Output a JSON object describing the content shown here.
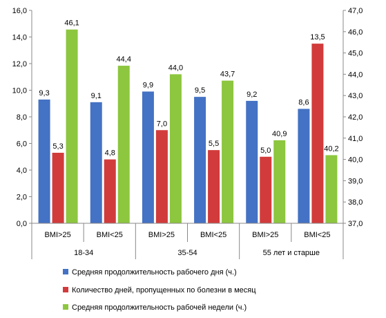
{
  "chart_data": {
    "type": "bar",
    "groups": [
      {
        "label": "18-34",
        "subcategories": [
          "BMI>25",
          "BMI<25"
        ]
      },
      {
        "label": "35-54",
        "subcategories": [
          "BMI>25",
          "BMI<25"
        ]
      },
      {
        "label": "55 лет и старше",
        "subcategories": [
          "BMI>25",
          "BMI<25"
        ]
      }
    ],
    "categories": [
      "BMI>25",
      "BMI<25",
      "BMI>25",
      "BMI<25",
      "BMI>25",
      "BMI<25"
    ],
    "series": [
      {
        "name": "Средняя продолжительность рабочего дня (ч.)",
        "axis": "left",
        "color": "#4472C4",
        "values": [
          9.3,
          9.1,
          9.9,
          9.5,
          9.2,
          8.6
        ],
        "labels": [
          "9,3",
          "9,1",
          "9,9",
          "9,5",
          "9,2",
          "8,6"
        ]
      },
      {
        "name": "Количество дней, пропущенных по болезни в месяц",
        "axis": "left",
        "color": "#D23B3B",
        "values": [
          5.3,
          4.8,
          7.0,
          5.5,
          5.0,
          13.5
        ],
        "labels": [
          "5,3",
          "4,8",
          "7,0",
          "5,5",
          "5,0",
          "13,5"
        ]
      },
      {
        "name": "Средняя продолжительность рабочей недели (ч.)",
        "axis": "right",
        "color": "#8DC63F",
        "values": [
          46.1,
          44.4,
          44.0,
          43.7,
          40.9,
          40.2
        ],
        "labels": [
          "46,1",
          "44,4",
          "44,0",
          "43,7",
          "40,9",
          "40,2"
        ]
      }
    ],
    "y_left": {
      "min": 0,
      "max": 16,
      "ticks": [
        "0,0",
        "2,0",
        "4,0",
        "6,0",
        "8,0",
        "10,0",
        "12,0",
        "14,0",
        "16,0"
      ]
    },
    "y_right": {
      "min": 37,
      "max": 47,
      "ticks": [
        "37,0",
        "38,0",
        "39,0",
        "40,0",
        "41,0",
        "42,0",
        "43,0",
        "44,0",
        "45,0",
        "46,0",
        "47,0"
      ]
    },
    "legend_position": "bottom",
    "grid": false
  }
}
